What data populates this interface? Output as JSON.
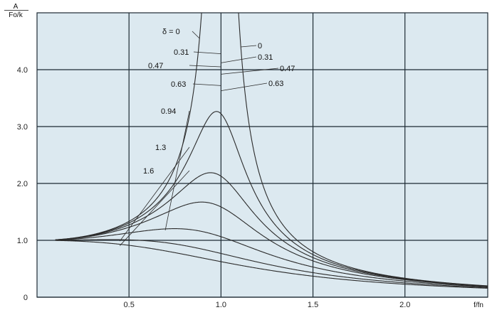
{
  "chart_data": {
    "type": "line",
    "title": "",
    "ylabel": {
      "numerator": "A",
      "denominator": "Fo/k"
    },
    "xlabel": "f/fn",
    "xlim": [
      0,
      2.45
    ],
    "ylim": [
      0,
      5.0
    ],
    "x_ticks": [
      0.5,
      1.0,
      1.5,
      2.0
    ],
    "x_tick_labels": [
      "0.5",
      "1.0",
      "1.5",
      "2.0"
    ],
    "y_ticks": [
      0,
      1.0,
      2.0,
      3.0,
      4.0
    ],
    "y_tick_labels": [
      "0",
      "1.0",
      "2.0",
      "3.0",
      "4.0"
    ],
    "grid": true,
    "background": "#dce9f0",
    "x_range_plotted": [
      0.1,
      2.45
    ],
    "series": [
      {
        "name": "0",
        "damping": 0.0
      },
      {
        "name": "0.31",
        "damping": 0.31
      },
      {
        "name": "0.47",
        "damping": 0.47
      },
      {
        "name": "0.63",
        "damping": 0.63
      },
      {
        "name": "0.94",
        "damping": 0.94
      },
      {
        "name": "1.3",
        "damping": 1.3
      },
      {
        "name": "1.6",
        "damping": 1.6
      }
    ],
    "annotations": {
      "left": [
        {
          "text": "δ = 0",
          "series": "0"
        },
        {
          "text": "0.31",
          "series": "0.31"
        },
        {
          "text": "0.47",
          "series": "0.47"
        },
        {
          "text": "0.63",
          "series": "0.63"
        },
        {
          "text": "0.94",
          "series": "0.94"
        },
        {
          "text": "1.3",
          "series": "1.3"
        },
        {
          "text": "1.6",
          "series": "1.6"
        }
      ],
      "right": [
        {
          "text": "0",
          "series": "0"
        },
        {
          "text": "0.31",
          "series": "0.31"
        },
        {
          "text": "0.47",
          "series": "0.47"
        },
        {
          "text": "0.63",
          "series": "0.63"
        }
      ]
    }
  }
}
